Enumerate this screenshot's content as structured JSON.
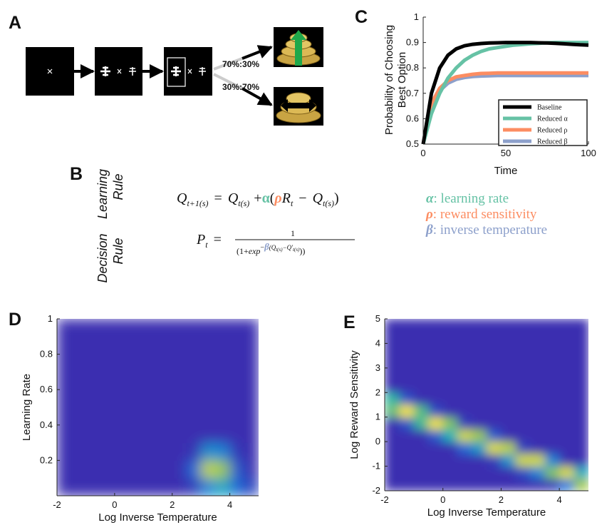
{
  "panel_labels": [
    "A",
    "B",
    "C",
    "D",
    "E"
  ],
  "diagram": {
    "probabilities": [
      "70%:30%",
      "30%:70%"
    ]
  },
  "equations": {
    "row_labels": [
      [
        "Learning",
        "Rule"
      ],
      [
        "Decision",
        "Rule"
      ]
    ],
    "learning": [
      "Q",
      "t+1(s)",
      "=",
      "Q",
      "t(s)",
      "+",
      "α",
      "(",
      "ρ",
      "R",
      "t",
      "−",
      "Q",
      "t(s)",
      ")"
    ],
    "decision": [
      "P",
      "t",
      "=",
      "1",
      "(1+",
      "exp",
      "−",
      "β",
      "(Q",
      "t(s)",
      "−Q'",
      "t(s)",
      "))"
    ],
    "parameters": [
      {
        "symbol": "α",
        "text": ": learning rate",
        "color": "#66c2a5"
      },
      {
        "symbol": "ρ",
        "text": ": reward sensitivity",
        "color": "#fc8d62"
      },
      {
        "symbol": "β",
        "text": ": inverse temperature",
        "color": "#8da0cb"
      }
    ]
  },
  "chart_data": [
    {
      "type": "line",
      "xlabel": "Time",
      "ylabel": [
        "Probability of Choosing",
        "Best Option"
      ],
      "x": [
        0,
        5,
        10,
        15,
        20,
        25,
        30,
        35,
        40,
        45,
        50,
        55,
        60,
        65,
        70,
        75,
        80,
        85,
        90,
        95,
        100
      ],
      "xlim": [
        0,
        100
      ],
      "xticks": [
        0,
        50,
        100
      ],
      "ylim": [
        0.5,
        1
      ],
      "yticks": [
        0.5,
        0.6,
        0.7,
        0.8,
        0.9,
        1
      ],
      "legend": "lower right",
      "series": [
        {
          "name": "Baseline",
          "color": "#000000",
          "values": [
            0.5,
            0.7,
            0.8,
            0.85,
            0.875,
            0.887,
            0.893,
            0.896,
            0.898,
            0.899,
            0.9,
            0.9,
            0.9,
            0.9,
            0.899,
            0.898,
            0.897,
            0.895,
            0.893,
            0.891,
            0.89
          ]
        },
        {
          "name": "Reduced α",
          "color": "#66c2a5",
          "values": [
            0.5,
            0.62,
            0.7,
            0.76,
            0.8,
            0.83,
            0.85,
            0.865,
            0.875,
            0.88,
            0.885,
            0.89,
            0.892,
            0.895,
            0.897,
            0.899,
            0.9,
            0.9,
            0.9,
            0.9,
            0.9
          ]
        },
        {
          "name": "Reduced ρ",
          "color": "#fc8d62",
          "values": [
            0.5,
            0.66,
            0.72,
            0.75,
            0.765,
            0.77,
            0.775,
            0.778,
            0.779,
            0.78,
            0.78,
            0.78,
            0.78,
            0.78,
            0.78,
            0.78,
            0.78,
            0.78,
            0.78,
            0.78,
            0.78
          ]
        },
        {
          "name": "Reduced β",
          "color": "#8da0cb",
          "values": [
            0.5,
            0.65,
            0.71,
            0.74,
            0.755,
            0.762,
            0.766,
            0.768,
            0.769,
            0.77,
            0.77,
            0.77,
            0.77,
            0.77,
            0.77,
            0.77,
            0.77,
            0.77,
            0.77,
            0.77,
            0.77
          ]
        }
      ]
    },
    {
      "type": "heatmap",
      "xlabel": "Log Inverse Temperature",
      "ylabel": "Learning Rate",
      "xlim": [
        -2,
        5
      ],
      "xticks": [
        -2,
        0,
        2,
        4
      ],
      "ylim": [
        0,
        1
      ],
      "yticks": [
        0.2,
        0.4,
        0.6,
        0.8,
        1
      ],
      "clim": [
        0,
        1
      ],
      "colormap": [
        "#3a2fb0",
        "#1778de",
        "#16b3b8",
        "#9cc94c",
        "#f8e822"
      ],
      "z": [
        [
          0,
          0,
          0,
          0,
          0,
          0,
          0,
          0,
          0,
          0.05,
          0.3,
          0.45,
          0.2,
          0.08
        ],
        [
          0,
          0,
          0,
          0,
          0,
          0,
          0,
          0,
          0,
          0.2,
          0.85,
          0.75,
          0.15,
          0
        ],
        [
          0,
          0,
          0,
          0,
          0,
          0,
          0,
          0,
          0,
          0.02,
          0.35,
          0.3,
          0.03,
          0
        ],
        [
          0,
          0,
          0,
          0,
          0,
          0,
          0,
          0,
          0,
          0,
          0,
          0,
          0,
          0
        ],
        [
          0,
          0,
          0,
          0,
          0,
          0,
          0,
          0,
          0,
          0,
          0,
          0,
          0,
          0
        ],
        [
          0,
          0,
          0,
          0,
          0,
          0,
          0,
          0,
          0,
          0,
          0,
          0,
          0,
          0
        ],
        [
          0,
          0,
          0,
          0,
          0,
          0,
          0,
          0,
          0,
          0,
          0,
          0,
          0,
          0
        ],
        [
          0,
          0,
          0,
          0,
          0,
          0,
          0,
          0,
          0,
          0,
          0,
          0,
          0,
          0
        ],
        [
          0,
          0,
          0,
          0,
          0,
          0,
          0,
          0,
          0,
          0,
          0,
          0,
          0,
          0
        ],
        [
          0,
          0,
          0,
          0,
          0,
          0,
          0,
          0,
          0,
          0,
          0,
          0,
          0,
          0
        ]
      ]
    },
    {
      "type": "heatmap",
      "xlabel": "Log Inverse Temperature",
      "ylabel": "Log Reward Sensitivity",
      "xlim": [
        -2,
        5
      ],
      "xticks": [
        -2,
        0,
        2,
        4
      ],
      "ylim": [
        -2,
        5
      ],
      "yticks": [
        -2,
        -1,
        0,
        1,
        2,
        3,
        4,
        5
      ],
      "clim": [
        0,
        1
      ],
      "colormap": [
        "#3a2fb0",
        "#1778de",
        "#16b3b8",
        "#9cc94c",
        "#f8e822"
      ],
      "z": [
        [
          0,
          0,
          0,
          0,
          0,
          0,
          0,
          0,
          0,
          0,
          0,
          0.03,
          0.25,
          0.77
        ],
        [
          0,
          0,
          0,
          0,
          0,
          0,
          0,
          0,
          0,
          0.1,
          0.3,
          0.7,
          0.93,
          0.46
        ],
        [
          0,
          0,
          0,
          0,
          0,
          0,
          0,
          0.05,
          0.37,
          0.9,
          0.9,
          0.3,
          0,
          0
        ],
        [
          0,
          0,
          0,
          0,
          0,
          0.2,
          0.4,
          0.93,
          0.83,
          0.07,
          0,
          0,
          0,
          0
        ],
        [
          0,
          0,
          0,
          0.15,
          0.5,
          0.9,
          0.75,
          0.15,
          0,
          0,
          0,
          0,
          0,
          0
        ],
        [
          0,
          0.13,
          0.58,
          0.99,
          0.7,
          0.05,
          0,
          0,
          0,
          0,
          0,
          0,
          0,
          0
        ],
        [
          0.65,
          1.0,
          0.62,
          0.1,
          0,
          0,
          0,
          0,
          0,
          0,
          0,
          0,
          0,
          0
        ],
        [
          0.55,
          0.13,
          0,
          0,
          0,
          0,
          0,
          0,
          0,
          0,
          0,
          0,
          0,
          0
        ],
        [
          0,
          0,
          0,
          0,
          0,
          0,
          0,
          0,
          0,
          0,
          0,
          0,
          0,
          0
        ],
        [
          0,
          0,
          0,
          0,
          0,
          0,
          0,
          0,
          0,
          0,
          0,
          0,
          0,
          0
        ],
        [
          0,
          0,
          0,
          0,
          0,
          0,
          0,
          0,
          0,
          0,
          0,
          0,
          0,
          0
        ],
        [
          0,
          0,
          0,
          0,
          0,
          0,
          0,
          0,
          0,
          0,
          0,
          0,
          0,
          0
        ],
        [
          0,
          0,
          0,
          0,
          0,
          0,
          0,
          0,
          0,
          0,
          0,
          0,
          0,
          0
        ],
        [
          0,
          0,
          0,
          0,
          0,
          0,
          0,
          0,
          0,
          0,
          0,
          0,
          0,
          0
        ]
      ]
    }
  ]
}
